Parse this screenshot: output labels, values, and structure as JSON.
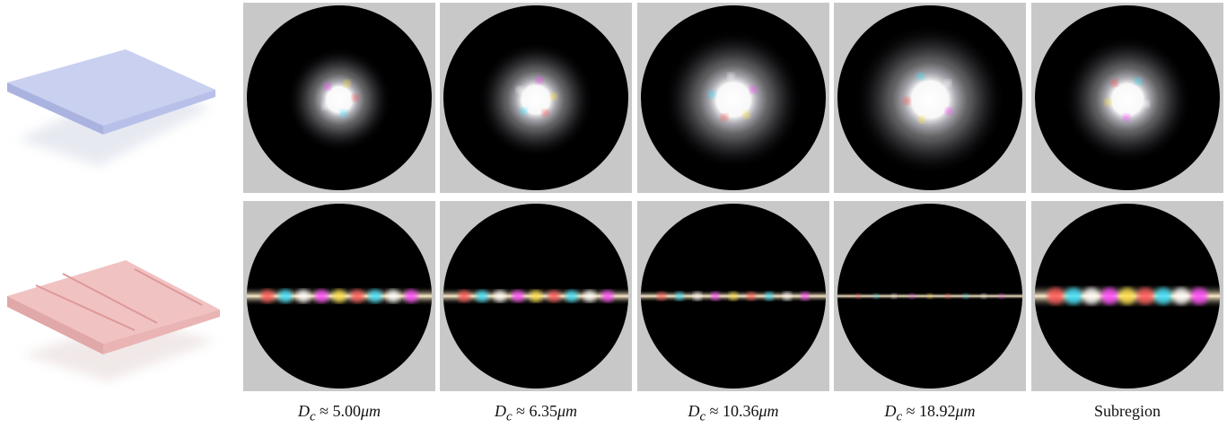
{
  "figure": {
    "captions": [
      {
        "symbol": "D",
        "sub": "c",
        "rel": "≈ 5.00",
        "unit": "μm"
      },
      {
        "symbol": "D",
        "sub": "c",
        "rel": "≈ 6.35",
        "unit": "μm"
      },
      {
        "symbol": "D",
        "sub": "c",
        "rel": "≈ 10.36",
        "unit": "μm"
      },
      {
        "symbol": "D",
        "sub": "c",
        "rel": "≈ 18.92",
        "unit": "μm"
      },
      {
        "label": "Subregion"
      }
    ]
  }
}
